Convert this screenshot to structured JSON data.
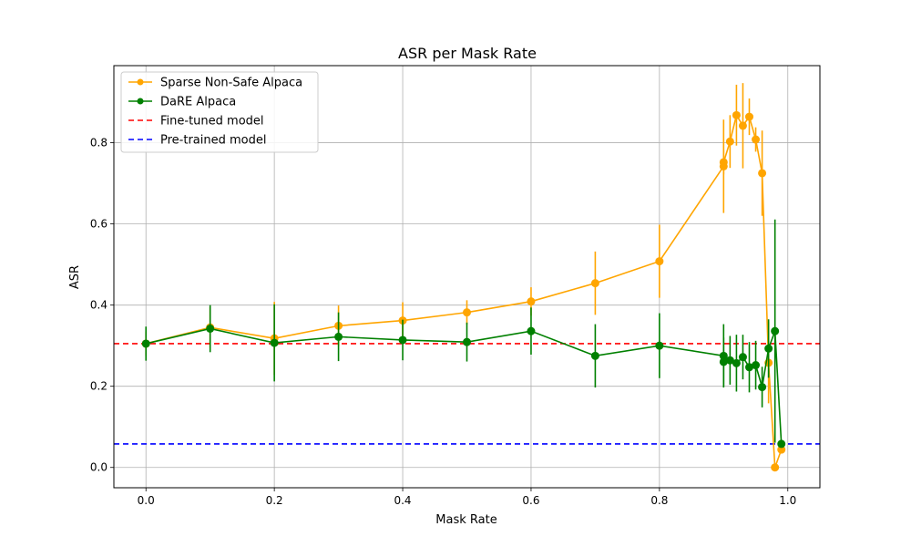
{
  "chart_data": {
    "type": "line",
    "title": "ASR per Mask Rate",
    "xlabel": "Mask Rate",
    "ylabel": "ASR",
    "xlim": [
      -0.05,
      1.05
    ],
    "ylim": [
      -0.05,
      0.99
    ],
    "xticks": [
      "0.0",
      "0.2",
      "0.4",
      "0.6",
      "0.8",
      "1.0"
    ],
    "yticks": [
      "0.0",
      "0.2",
      "0.4",
      "0.6",
      "0.8"
    ],
    "grid": true,
    "legend_position": "top-left",
    "series": [
      {
        "name": "Sparse Non-Safe Alpaca",
        "color": "#ffa500",
        "marker": "circle",
        "points": [
          {
            "x": 0.0,
            "y": 0.305,
            "err": 0.03
          },
          {
            "x": 0.1,
            "y": 0.345,
            "err": 0.05
          },
          {
            "x": 0.2,
            "y": 0.318,
            "err": 0.09
          },
          {
            "x": 0.3,
            "y": 0.349,
            "err": 0.05
          },
          {
            "x": 0.4,
            "y": 0.362,
            "err": 0.045
          },
          {
            "x": 0.5,
            "y": 0.382,
            "err": 0.03
          },
          {
            "x": 0.6,
            "y": 0.409,
            "err": 0.035
          },
          {
            "x": 0.7,
            "y": 0.454,
            "err": 0.078
          },
          {
            "x": 0.8,
            "y": 0.508,
            "err": 0.09
          },
          {
            "x": 0.9,
            "y": 0.742,
            "err": 0.115
          },
          {
            "x": 0.9,
            "y": 0.752,
            "err": 0.03
          },
          {
            "x": 0.91,
            "y": 0.803,
            "err": 0.065
          },
          {
            "x": 0.92,
            "y": 0.868,
            "err": 0.075
          },
          {
            "x": 0.93,
            "y": 0.842,
            "err": 0.105
          },
          {
            "x": 0.94,
            "y": 0.864,
            "err": 0.045
          },
          {
            "x": 0.95,
            "y": 0.808,
            "err": 0.03
          },
          {
            "x": 0.96,
            "y": 0.725,
            "err": 0.105
          },
          {
            "x": 0.97,
            "y": 0.258,
            "err": 0.1
          },
          {
            "x": 0.98,
            "y": 0.0,
            "err": 0.0
          },
          {
            "x": 0.99,
            "y": 0.044,
            "err": 0.0
          }
        ]
      },
      {
        "name": "DaRE Alpaca",
        "color": "#008000",
        "marker": "circle",
        "points": [
          {
            "x": 0.0,
            "y": 0.305,
            "err": 0.042
          },
          {
            "x": 0.1,
            "y": 0.342,
            "err": 0.058
          },
          {
            "x": 0.2,
            "y": 0.307,
            "err": 0.095
          },
          {
            "x": 0.3,
            "y": 0.322,
            "err": 0.06
          },
          {
            "x": 0.4,
            "y": 0.314,
            "err": 0.05
          },
          {
            "x": 0.5,
            "y": 0.309,
            "err": 0.048
          },
          {
            "x": 0.6,
            "y": 0.336,
            "err": 0.058
          },
          {
            "x": 0.7,
            "y": 0.275,
            "err": 0.078
          },
          {
            "x": 0.8,
            "y": 0.3,
            "err": 0.08
          },
          {
            "x": 0.9,
            "y": 0.275,
            "err": 0.078
          },
          {
            "x": 0.9,
            "y": 0.26,
            "err": 0.06
          },
          {
            "x": 0.91,
            "y": 0.264,
            "err": 0.06
          },
          {
            "x": 0.92,
            "y": 0.257,
            "err": 0.07
          },
          {
            "x": 0.93,
            "y": 0.272,
            "err": 0.055
          },
          {
            "x": 0.94,
            "y": 0.247,
            "err": 0.062
          },
          {
            "x": 0.95,
            "y": 0.252,
            "err": 0.06
          },
          {
            "x": 0.96,
            "y": 0.198,
            "err": 0.05
          },
          {
            "x": 0.97,
            "y": 0.293,
            "err": 0.072
          },
          {
            "x": 0.98,
            "y": 0.336,
            "err": 0.275
          },
          {
            "x": 0.99,
            "y": 0.058,
            "err": 0.0
          }
        ]
      }
    ],
    "reference_lines": [
      {
        "name": "Fine-tuned model",
        "y": 0.305,
        "color": "#ff0000",
        "style": "dashed"
      },
      {
        "name": "Pre-trained model",
        "y": 0.058,
        "color": "#0000ff",
        "style": "dashed"
      }
    ]
  }
}
